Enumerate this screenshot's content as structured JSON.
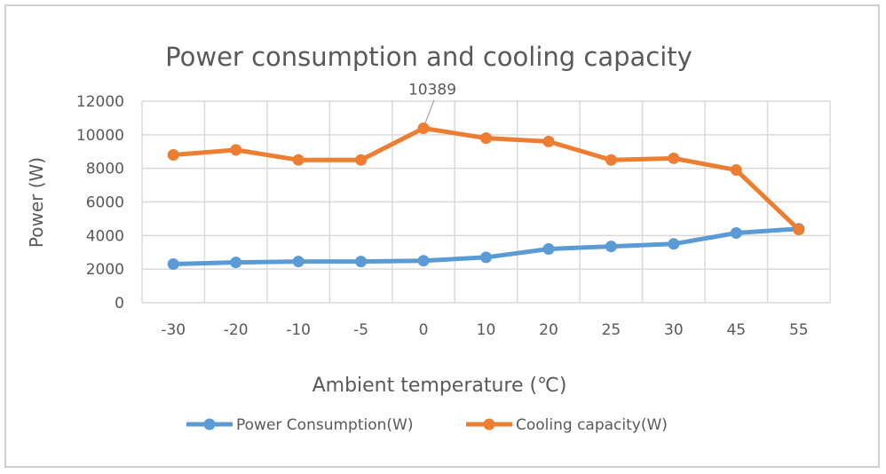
{
  "chart_data": {
    "type": "line",
    "title": "Power consumption and cooling capacity",
    "xlabel": "Ambient temperature (℃)",
    "ylabel": "Power (W)",
    "categories": [
      "-30",
      "-20",
      "-10",
      "-5",
      "0",
      "10",
      "20",
      "25",
      "30",
      "45",
      "55"
    ],
    "ylim": [
      0,
      12000
    ],
    "yticks": [
      "0",
      "2000",
      "4000",
      "6000",
      "8000",
      "10000",
      "12000"
    ],
    "grid": true,
    "legend_position": "bottom",
    "series": [
      {
        "name": "Power Consumption(W)",
        "color": "#5b9bd5",
        "values": [
          2300,
          2400,
          2450,
          2450,
          2500,
          2700,
          3200,
          3350,
          3500,
          4150,
          4400
        ]
      },
      {
        "name": "Cooling capacity(W)",
        "color": "#ed7d31",
        "values": [
          8800,
          9100,
          8500,
          8500,
          10389,
          9800,
          9600,
          8500,
          8600,
          7900,
          4350
        ]
      }
    ],
    "annotations": [
      {
        "series": 1,
        "index": 4,
        "text": "10389"
      }
    ]
  }
}
